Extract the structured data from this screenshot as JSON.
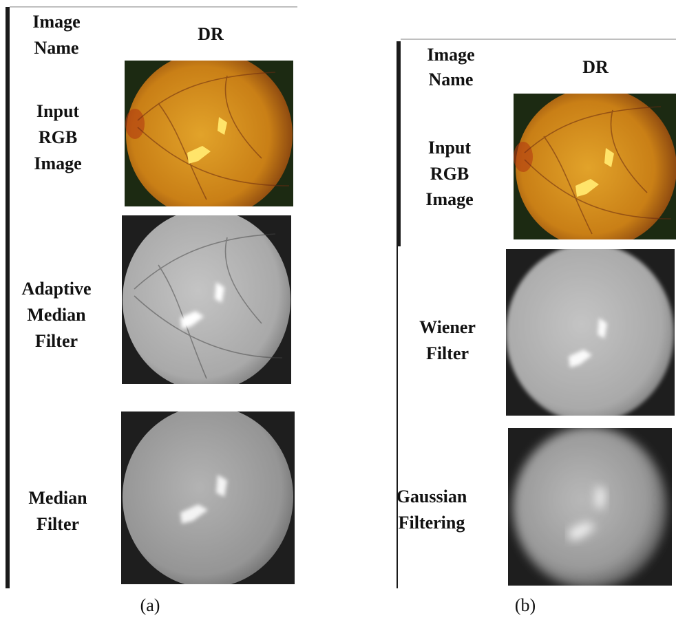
{
  "panels": [
    {
      "caption": "(a)",
      "header": {
        "row_label": [
          "Image",
          "Name"
        ],
        "column": "DR"
      },
      "rows": [
        {
          "label": [
            "Input",
            "RGB",
            "Image"
          ]
        },
        {
          "label": [
            "Adaptive",
            "Median",
            "Filter"
          ]
        },
        {
          "label": [
            "Median",
            "Filter"
          ]
        }
      ]
    },
    {
      "caption": "(b)",
      "header": {
        "row_label": [
          "Image",
          "Name"
        ],
        "column": "DR"
      },
      "rows": [
        {
          "label": [
            "Input",
            "RGB",
            "Image"
          ]
        },
        {
          "label": [
            "Wiener",
            "Filter"
          ]
        },
        {
          "label": [
            "Gaussian",
            "Filtering"
          ]
        }
      ]
    }
  ]
}
